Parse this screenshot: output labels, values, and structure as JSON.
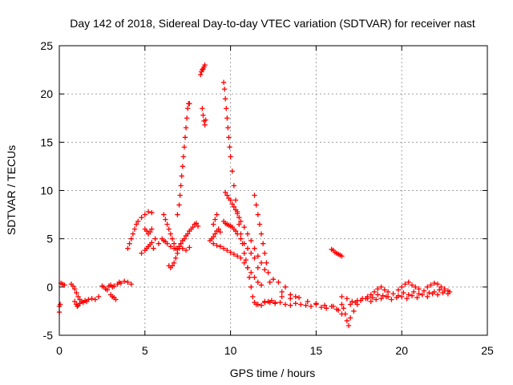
{
  "chart_data": {
    "type": "scatter",
    "title": "Day 142 of 2018, Sidereal Day-to-day VTEC variation (SDTVAR) for receiver nast",
    "xlabel": "GPS time / hours",
    "ylabel": "SDTVAR / TECUs",
    "xlim": [
      0,
      25
    ],
    "ylim": [
      -5,
      25
    ],
    "xticks": [
      "0",
      "5",
      "10",
      "15",
      "20",
      "25"
    ],
    "yticks": [
      "-5",
      "0",
      "5",
      "10",
      "15",
      "20",
      "25"
    ],
    "grid": true,
    "marker": "+",
    "color": "#ff0000",
    "series": [
      {
        "name": "SDTVAR",
        "x": [
          0.0,
          0.0,
          0.05,
          0.1,
          0.2,
          0.3,
          0.7,
          0.8,
          0.9,
          1.0,
          1.1,
          1.2,
          1.3,
          1.5,
          1.7,
          1.9,
          2.1,
          2.3,
          0.9,
          1.0,
          1.05,
          1.1,
          1.2,
          1.4,
          1.6,
          2.5,
          2.6,
          2.7,
          2.8,
          2.9,
          3.0,
          3.1,
          3.2,
          3.4,
          3.5,
          3.6,
          3.8,
          4.0,
          4.2,
          3.0,
          3.1,
          3.2,
          3.3,
          4.0,
          4.1,
          4.2,
          4.3,
          4.4,
          4.5,
          4.6,
          4.8,
          5.0,
          5.2,
          5.4,
          4.8,
          5.0,
          5.1,
          5.2,
          5.3,
          5.4,
          5.5,
          5.0,
          5.1,
          5.2,
          5.3,
          5.4,
          5.6,
          5.8,
          6.0,
          6.1,
          6.2,
          6.3,
          6.5,
          6.7,
          6.9,
          7.0,
          7.2,
          7.4,
          7.6,
          6.1,
          6.2,
          6.3,
          6.4,
          6.5,
          6.6,
          6.7,
          6.8,
          6.4,
          6.5,
          6.6,
          6.7,
          6.8,
          6.9,
          7.0,
          7.1,
          6.9,
          7.0,
          7.05,
          7.1,
          7.15,
          7.2,
          7.25,
          7.3,
          7.35,
          7.4,
          7.45,
          7.5,
          7.55,
          7.6,
          7.0,
          7.1,
          7.2,
          7.3,
          7.4,
          7.5,
          7.6,
          7.7,
          7.8,
          7.9,
          8.0,
          8.1,
          8.25,
          8.3,
          8.35,
          8.4,
          8.45,
          8.5,
          8.35,
          8.4,
          8.45,
          8.5,
          8.55,
          8.8,
          8.9,
          9.0,
          9.1,
          9.2,
          9.3,
          9.4,
          9.0,
          9.1,
          9.2,
          9.6,
          9.65,
          9.7,
          9.75,
          9.8,
          9.85,
          9.9,
          9.95,
          10.0,
          10.1,
          10.2,
          10.3,
          10.4,
          10.5,
          10.6,
          10.7,
          10.8,
          10.9,
          11.0,
          11.1,
          11.2,
          11.3,
          11.4,
          11.5,
          11.6,
          11.8,
          12.0,
          12.2,
          12.4,
          12.6,
          9.7,
          9.8,
          9.9,
          10.0,
          10.1,
          10.2,
          10.3,
          10.4,
          10.5,
          10.6,
          10.8,
          11.0,
          11.2,
          11.4,
          11.6,
          11.8,
          12.0,
          9.6,
          9.7,
          9.8,
          9.9,
          10.0,
          10.1,
          10.2,
          10.3,
          10.4,
          10.6,
          10.8,
          11.0,
          11.2,
          11.4,
          11.6,
          9.0,
          9.2,
          9.4,
          9.6,
          9.8,
          10.0,
          10.2,
          10.4,
          10.6,
          10.8,
          11.0,
          11.2,
          11.4,
          11.6,
          11.8,
          11.4,
          11.5,
          11.6,
          11.7,
          11.8,
          11.9,
          12.0,
          12.1,
          12.2,
          12.3,
          12.0,
          12.3,
          12.6,
          12.9,
          13.2,
          13.5,
          13.8,
          14.1,
          14.4,
          14.7,
          15.0,
          15.3,
          15.6,
          15.9,
          16.2,
          12.5,
          12.8,
          13.0,
          13.2,
          13.5,
          13.8,
          13.0,
          13.5,
          14.0,
          14.5,
          15.0,
          15.5,
          16.0,
          16.3,
          16.5,
          15.9,
          16.0,
          16.1,
          16.2,
          16.3,
          16.4,
          16.5,
          16.5,
          16.6,
          16.7,
          16.8,
          16.9,
          17.0,
          17.2,
          17.4,
          16.5,
          16.8,
          17.1,
          17.4,
          17.7,
          18.0,
          18.3,
          18.6,
          18.9,
          19.2,
          19.5,
          19.8,
          20.1,
          20.4,
          20.7,
          21.0,
          21.3,
          21.6,
          21.9,
          22.2,
          22.5,
          22.8,
          17.0,
          17.3,
          17.6,
          17.9,
          18.2,
          18.5,
          18.8,
          19.1,
          19.4,
          19.7,
          20.0,
          20.3,
          20.6,
          20.9,
          21.2,
          21.5,
          21.8,
          22.1,
          22.4,
          22.7,
          19.8,
          20.0,
          20.2,
          20.4,
          20.6,
          20.8,
          21.0,
          21.5,
          21.7,
          21.9,
          22.1,
          22.3,
          22.5,
          22.7,
          18.0,
          18.2,
          18.4,
          18.6,
          18.8,
          19.0,
          19.2
        ],
        "y": [
          -2.0,
          -2.6,
          -1.8,
          0.4,
          0.3,
          0.2,
          0.3,
          0.1,
          -0.2,
          -0.6,
          -1.0,
          -1.3,
          -1.5,
          -1.4,
          -1.3,
          -1.2,
          -1.3,
          -1.0,
          -1.5,
          -1.8,
          -2.0,
          -1.9,
          -1.7,
          -1.6,
          -1.5,
          0.1,
          0.0,
          -0.2,
          -0.3,
          0.1,
          0.2,
          0.0,
          0.1,
          0.3,
          0.5,
          0.4,
          0.6,
          0.5,
          0.3,
          -0.8,
          -1.0,
          -1.1,
          -1.3,
          4.0,
          4.5,
          5.0,
          5.5,
          6.0,
          6.5,
          6.8,
          7.2,
          7.5,
          7.8,
          7.7,
          3.5,
          3.8,
          4.0,
          4.2,
          4.4,
          4.6,
          4.0,
          6.0,
          5.8,
          5.5,
          5.7,
          6.0,
          5.0,
          4.5,
          5.0,
          4.8,
          4.7,
          4.5,
          4.2,
          4.0,
          3.9,
          4.2,
          4.0,
          3.8,
          4.1,
          7.5,
          7.0,
          6.5,
          6.0,
          5.5,
          5.0,
          4.5,
          4.0,
          2.2,
          2.0,
          2.2,
          2.5,
          3.0,
          3.5,
          4.0,
          4.5,
          7.5,
          8.5,
          9.5,
          10.5,
          11.5,
          12.5,
          13.5,
          14.5,
          15.5,
          16.5,
          17.5,
          18.5,
          19.0,
          19.0,
          4.2,
          4.5,
          4.8,
          5.0,
          5.3,
          5.5,
          5.8,
          6.0,
          6.2,
          6.5,
          6.6,
          6.3,
          22.0,
          22.3,
          22.5,
          22.6,
          22.8,
          23.0,
          18.5,
          17.8,
          17.2,
          16.8,
          17.3,
          4.8,
          5.0,
          5.2,
          5.5,
          5.8,
          6.0,
          5.7,
          6.5,
          7.0,
          7.5,
          21.2,
          20.5,
          19.5,
          18.5,
          17.5,
          16.5,
          15.5,
          14.5,
          13.5,
          12.0,
          10.5,
          9.0,
          7.8,
          6.5,
          5.5,
          4.5,
          3.5,
          2.8,
          2.0,
          1.0,
          0.0,
          -1.0,
          -1.6,
          -1.8,
          -1.8,
          -1.9,
          -1.6,
          -1.5,
          -1.4,
          -1.6,
          9.8,
          9.5,
          9.2,
          9.0,
          8.6,
          8.3,
          8.0,
          7.6,
          7.2,
          6.8,
          6.2,
          5.5,
          4.8,
          4.0,
          3.2,
          2.5,
          1.8,
          6.8,
          6.6,
          6.5,
          6.4,
          6.3,
          6.2,
          6.0,
          5.8,
          5.5,
          5.0,
          4.5,
          4.0,
          3.5,
          3.0,
          2.0,
          4.5,
          4.3,
          4.2,
          4.0,
          3.8,
          3.6,
          3.4,
          3.2,
          3.0,
          2.5,
          2.0,
          1.5,
          1.0,
          0.5,
          0.2,
          9.5,
          8.5,
          7.5,
          6.5,
          5.5,
          4.5,
          3.5,
          2.5,
          1.5,
          0.5,
          -1.5,
          -1.6,
          -1.7,
          -1.6,
          -1.8,
          -1.9,
          -1.7,
          -1.8,
          -1.9,
          -2.0,
          -1.8,
          -2.1,
          -2.2,
          -2.0,
          -2.3,
          0.8,
          0.5,
          -0.5,
          0.0,
          -0.8,
          -1.0,
          -1.0,
          -1.2,
          -1.1,
          -1.5,
          -1.7,
          -1.9,
          -2.0,
          -2.4,
          -2.8,
          3.9,
          3.8,
          3.6,
          3.5,
          3.4,
          3.3,
          3.2,
          -1.8,
          -2.2,
          -2.8,
          -3.5,
          -4.0,
          -3.2,
          -2.5,
          -1.8,
          -1.0,
          -1.2,
          -1.5,
          -1.4,
          -1.2,
          -1.0,
          -1.1,
          -0.8,
          -0.9,
          -1.0,
          -0.7,
          -0.9,
          -0.6,
          -0.8,
          -0.5,
          -0.7,
          -0.4,
          -0.6,
          -0.5,
          -0.3,
          -0.4,
          -0.5,
          -1.8,
          -1.6,
          -1.4,
          -1.2,
          -1.5,
          -1.3,
          -1.2,
          -1.0,
          -1.3,
          -1.1,
          -1.0,
          -1.2,
          -0.9,
          -1.1,
          -0.8,
          -1.0,
          -0.7,
          -0.8,
          -0.6,
          -0.7,
          -0.3,
          0.0,
          0.3,
          0.5,
          0.2,
          0.0,
          -0.2,
          0.0,
          0.2,
          0.4,
          0.3,
          0.0,
          -0.2,
          -0.4,
          -1.2,
          -0.8,
          -0.5,
          -0.2,
          0.0,
          -0.3,
          -0.5
        ]
      }
    ]
  }
}
